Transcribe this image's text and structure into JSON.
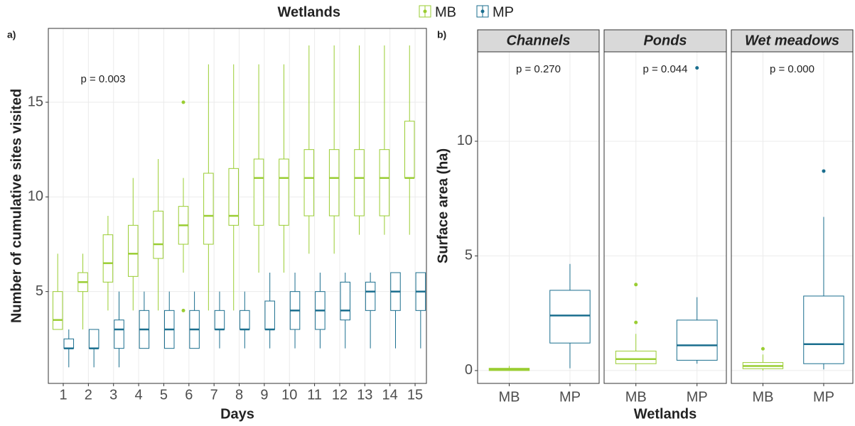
{
  "legend_title": "Wetlands",
  "panel_labels": [
    "a)",
    "b)"
  ],
  "chart_data": [
    {
      "type": "boxplot",
      "annotation": "p = 0.003",
      "x_label": "Days",
      "y_label": "Number of cumulative sites visited",
      "categories": [
        "1",
        "2",
        "3",
        "4",
        "5",
        "6",
        "7",
        "8",
        "9",
        "10",
        "11",
        "12",
        "13",
        "14",
        "15"
      ],
      "ylim": [
        0.15,
        18.9
      ],
      "yticks": [
        5,
        10,
        15
      ],
      "grid": true,
      "series": [
        {
          "name": "MB",
          "color": "#9acd32",
          "boxes": [
            {
              "min": 3,
              "q1": 3,
              "median": 3.5,
              "q3": 5,
              "max": 7,
              "outliers": []
            },
            {
              "min": 3,
              "q1": 5,
              "median": 5.5,
              "q3": 6,
              "max": 7,
              "outliers": []
            },
            {
              "min": 4,
              "q1": 5.5,
              "median": 6.5,
              "q3": 8,
              "max": 9,
              "outliers": []
            },
            {
              "min": 4,
              "q1": 5.8,
              "median": 7,
              "q3": 8.5,
              "max": 11,
              "outliers": []
            },
            {
              "min": 4,
              "q1": 6.75,
              "median": 7.5,
              "q3": 9.25,
              "max": 12,
              "outliers": []
            },
            {
              "min": 6,
              "q1": 7.5,
              "median": 8.5,
              "q3": 9.5,
              "max": 11,
              "outliers": [
                4,
                15
              ]
            },
            {
              "min": 4,
              "q1": 7.5,
              "median": 9,
              "q3": 11.25,
              "max": 17,
              "outliers": []
            },
            {
              "min": 4,
              "q1": 8.5,
              "median": 9,
              "q3": 11.5,
              "max": 17,
              "outliers": []
            },
            {
              "min": 6,
              "q1": 8.5,
              "median": 11,
              "q3": 12,
              "max": 17,
              "outliers": []
            },
            {
              "min": 6,
              "q1": 8.5,
              "median": 11,
              "q3": 12,
              "max": 17,
              "outliers": []
            },
            {
              "min": 7,
              "q1": 9,
              "median": 11,
              "q3": 12.5,
              "max": 18,
              "outliers": []
            },
            {
              "min": 7,
              "q1": 9,
              "median": 11,
              "q3": 12.5,
              "max": 18,
              "outliers": []
            },
            {
              "min": 8,
              "q1": 9,
              "median": 11,
              "q3": 12.5,
              "max": 18,
              "outliers": []
            },
            {
              "min": 8,
              "q1": 9,
              "median": 11,
              "q3": 12.5,
              "max": 18,
              "outliers": []
            },
            {
              "min": 8,
              "q1": 11,
              "median": 11,
              "q3": 14,
              "max": 18,
              "outliers": []
            }
          ]
        },
        {
          "name": "MP",
          "color": "#1a6e8e",
          "boxes": [
            {
              "min": 1,
              "q1": 2,
              "median": 2,
              "q3": 2.5,
              "max": 3,
              "outliers": []
            },
            {
              "min": 1,
              "q1": 2,
              "median": 2,
              "q3": 3,
              "max": 3,
              "outliers": []
            },
            {
              "min": 1,
              "q1": 2,
              "median": 3,
              "q3": 3.5,
              "max": 5,
              "outliers": []
            },
            {
              "min": 2,
              "q1": 2,
              "median": 3,
              "q3": 4,
              "max": 5,
              "outliers": []
            },
            {
              "min": 2,
              "q1": 2,
              "median": 3,
              "q3": 4,
              "max": 5,
              "outliers": []
            },
            {
              "min": 2,
              "q1": 2,
              "median": 3,
              "q3": 4,
              "max": 5,
              "outliers": []
            },
            {
              "min": 2,
              "q1": 3,
              "median": 3,
              "q3": 4,
              "max": 5,
              "outliers": []
            },
            {
              "min": 2,
              "q1": 3,
              "median": 3,
              "q3": 4,
              "max": 5,
              "outliers": []
            },
            {
              "min": 2,
              "q1": 3,
              "median": 3,
              "q3": 4.5,
              "max": 6,
              "outliers": []
            },
            {
              "min": 2,
              "q1": 3,
              "median": 4,
              "q3": 5,
              "max": 6,
              "outliers": []
            },
            {
              "min": 2,
              "q1": 3,
              "median": 4,
              "q3": 5,
              "max": 6,
              "outliers": []
            },
            {
              "min": 2,
              "q1": 3.5,
              "median": 4,
              "q3": 5.5,
              "max": 6,
              "outliers": []
            },
            {
              "min": 2,
              "q1": 4,
              "median": 5,
              "q3": 5.5,
              "max": 6,
              "outliers": []
            },
            {
              "min": 2,
              "q1": 4,
              "median": 5,
              "q3": 6,
              "max": 6,
              "outliers": []
            },
            {
              "min": 2,
              "q1": 4,
              "median": 5,
              "q3": 6,
              "max": 6,
              "outliers": []
            }
          ]
        }
      ]
    },
    {
      "type": "boxplot",
      "x_label": "Wetlands",
      "y_label": "Surface area (ha)",
      "ylim": [
        -0.56,
        13.9
      ],
      "yticks": [
        0,
        5,
        10
      ],
      "grid": true,
      "facets": [
        {
          "title": "Channels",
          "annotation": "p = 0.270",
          "categories": [
            "MB",
            "MP"
          ],
          "boxes": [
            {
              "min": 0,
              "q1": 0,
              "median": 0.05,
              "q3": 0.1,
              "max": 0.2,
              "outliers": []
            },
            {
              "min": 0.1,
              "q1": 1.2,
              "median": 2.4,
              "q3": 3.5,
              "max": 4.65,
              "outliers": []
            }
          ]
        },
        {
          "title": "Ponds",
          "annotation": "p = 0.044",
          "categories": [
            "MB",
            "MP"
          ],
          "boxes": [
            {
              "min": 0,
              "q1": 0.3,
              "median": 0.5,
              "q3": 0.85,
              "max": 1.6,
              "outliers": [
                2.1,
                3.75
              ]
            },
            {
              "min": 0.3,
              "q1": 0.45,
              "median": 1.1,
              "q3": 2.2,
              "max": 3.2,
              "outliers": [
                13.2
              ]
            }
          ]
        },
        {
          "title": "Wet meadows",
          "annotation": "p = 0.000",
          "categories": [
            "MB",
            "MP"
          ],
          "boxes": [
            {
              "min": 0,
              "q1": 0.08,
              "median": 0.2,
              "q3": 0.35,
              "max": 0.7,
              "outliers": [
                0.95
              ]
            },
            {
              "min": 0.05,
              "q1": 0.3,
              "median": 1.15,
              "q3": 3.25,
              "max": 6.7,
              "outliers": [
                8.7
              ]
            }
          ]
        }
      ]
    }
  ]
}
